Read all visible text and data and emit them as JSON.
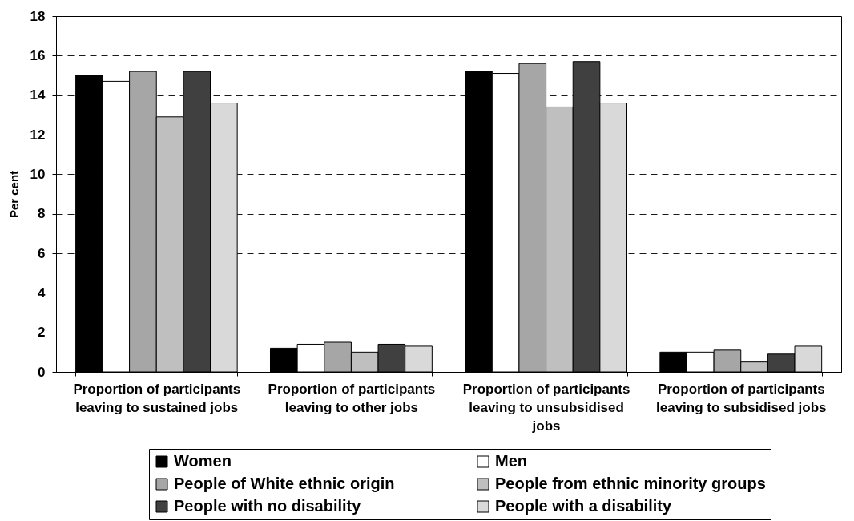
{
  "chart_data": {
    "type": "bar",
    "ylabel": "Per cent",
    "categories": [
      "Proportion of participants leaving to sustained jobs",
      "Proportion of participants leaving to other jobs",
      "Proportion of participants leaving to unsubsidised jobs",
      "Proportion of participants leaving to subsidised jobs"
    ],
    "series": [
      {
        "name": "Women",
        "color": "#000000",
        "values": [
          15.0,
          1.2,
          15.2,
          1.0
        ]
      },
      {
        "name": "Men",
        "color": "#ffffff",
        "values": [
          14.7,
          1.4,
          15.1,
          1.0
        ]
      },
      {
        "name": "People of White ethnic origin",
        "color": "#a6a6a6",
        "values": [
          15.2,
          1.5,
          15.6,
          1.1
        ]
      },
      {
        "name": "People from ethnic minority groups",
        "color": "#bfbfbf",
        "values": [
          12.9,
          1.0,
          13.4,
          0.5
        ]
      },
      {
        "name": "People with no disability",
        "color": "#404040",
        "values": [
          15.2,
          1.4,
          15.7,
          0.9
        ]
      },
      {
        "name": "People with a disability",
        "color": "#d9d9d9",
        "values": [
          13.6,
          1.3,
          13.6,
          1.3
        ]
      }
    ],
    "ylim": [
      0,
      18
    ],
    "yticks": [
      0,
      2,
      4,
      6,
      8,
      10,
      12,
      14,
      16,
      18
    ],
    "grid": "y",
    "legend": "bottom"
  }
}
